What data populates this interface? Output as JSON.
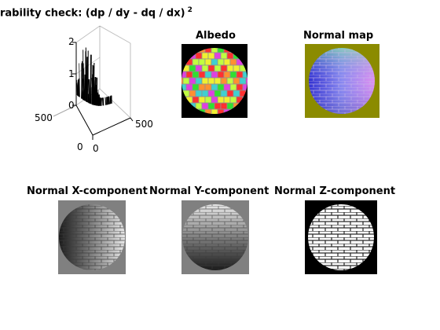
{
  "figure": {
    "panels": [
      {
        "id": "integrability",
        "title": "rability check: (dp / dy - dq / dx)",
        "title_superscript": "2"
      },
      {
        "id": "albedo",
        "title": "Albedo"
      },
      {
        "id": "normal-map",
        "title": "Normal map"
      },
      {
        "id": "normal-x",
        "title": "Normal X-component"
      },
      {
        "id": "normal-y",
        "title": "Normal Y-component"
      },
      {
        "id": "normal-z",
        "title": "Normal Z-component"
      }
    ]
  },
  "colors": {
    "normal_map_background": "#8b8b00",
    "gray_background": "#808080",
    "black_background": "#000000"
  },
  "chart_data": {
    "type": "surface3d",
    "title": "rability check: (dp / dy - dq / dx)",
    "title_superscript": "2",
    "z_ticks": [
      "0",
      "1",
      "2"
    ],
    "y_ticks": [
      "0",
      "500"
    ],
    "x_ticks": [
      "0",
      "500"
    ],
    "zlim": [
      0,
      2
    ],
    "xlim": [
      0,
      500
    ],
    "ylim": [
      0,
      500
    ]
  }
}
